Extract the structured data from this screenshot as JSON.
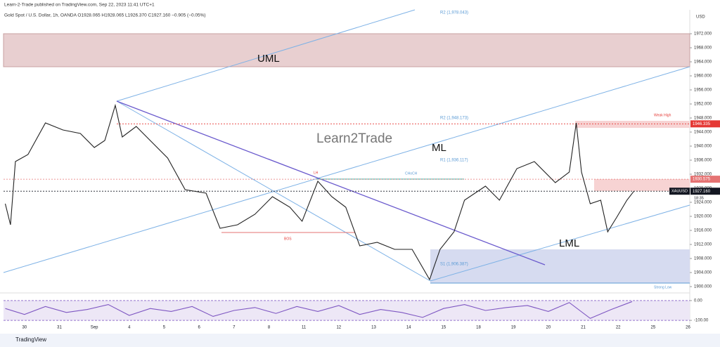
{
  "header": {
    "publisher": "Learn-2-Trade published on TradingView.com, Sep 22, 2023 11:41 UTC+1",
    "symbol": "Gold Spot / U.S. Dollar, 1h, OANDA  O1928.065 H1928.065 L1926.370 C1927.160 −0.905 (−0.05%)",
    "currency": "USD",
    "footer": "TradingView"
  },
  "chart_data": [
    {
      "type": "line",
      "color": "#222222",
      "x": [
        -0.55,
        -0.4,
        -0.26,
        0.1,
        0.6,
        1.1,
        1.6,
        2.0,
        2.3,
        2.6,
        2.8,
        3.2,
        3.6,
        4.1,
        4.6,
        5.2,
        5.6,
        6.1,
        6.6,
        7.1,
        7.6,
        7.95,
        8.4,
        8.8,
        9.2,
        9.6,
        10.1,
        10.6,
        11.1,
        11.6,
        11.9,
        12.3,
        12.6,
        13.2,
        13.6,
        14.1,
        14.6,
        15.2,
        15.6,
        15.8,
        15.95,
        16.2,
        16.5,
        16.7,
        16.95,
        17.25,
        17.45
      ],
      "series": [
        {
          "name": "XAUUSD",
          "color": "#222222",
          "values": [
            1923.6,
            1917.6,
            1935.6,
            1937.6,
            1946.6,
            1944.6,
            1943.6,
            1939.6,
            1941.6,
            1951.6,
            1942.6,
            1945.6,
            1941.6,
            1936.6,
            1927.6,
            1926.6,
            1916.6,
            1917.6,
            1920.6,
            1925.6,
            1922.6,
            1918.6,
            1930,
            1925.6,
            1922.6,
            1911.6,
            1912.6,
            1910.6,
            1910.6,
            1902,
            1910.6,
            1915.6,
            1924.6,
            1928.6,
            1924.6,
            1933.6,
            1935.6,
            1929.6,
            1932.6,
            1946.6,
            1932.6,
            1923.6,
            1924.6,
            1915.6,
            1919.6,
            1924.6,
            1927.16
          ]
        }
      ],
      "xlim": [
        -0.6,
        19.05
      ],
      "xticks": [
        {
          "value": 0,
          "label": "30"
        },
        {
          "value": 1,
          "label": "31"
        },
        {
          "value": 2,
          "label": "Sep"
        },
        {
          "value": 3,
          "label": "4"
        },
        {
          "value": 4,
          "label": "5"
        },
        {
          "value": 5,
          "label": "6"
        },
        {
          "value": 6,
          "label": "7"
        },
        {
          "value": 7,
          "label": "8"
        },
        {
          "value": 8,
          "label": "11"
        },
        {
          "value": 9,
          "label": "12"
        },
        {
          "value": 10,
          "label": "13"
        },
        {
          "value": 11,
          "label": "14"
        },
        {
          "value": 12,
          "label": "15"
        },
        {
          "value": 13,
          "label": "18"
        },
        {
          "value": 14,
          "label": "19"
        },
        {
          "value": 15,
          "label": "20"
        },
        {
          "value": 16,
          "label": "21"
        },
        {
          "value": 17,
          "label": "22"
        },
        {
          "value": 18,
          "label": "25"
        },
        {
          "value": 19,
          "label": "26"
        }
      ],
      "ylim": [
        1898.6,
        1978.8
      ],
      "yticks": [
        {
          "value": 1900,
          "label": "1900.000"
        },
        {
          "value": 1904,
          "label": "1904.000"
        },
        {
          "value": 1908,
          "label": "1908.000"
        },
        {
          "value": 1912,
          "label": "1912.000"
        },
        {
          "value": 1916,
          "label": "1916.000"
        },
        {
          "value": 1920,
          "label": "1920.000"
        },
        {
          "value": 1924,
          "label": "1924.000"
        },
        {
          "value": 1928,
          "label": "1928.000"
        },
        {
          "value": 1932,
          "label": "1932.000"
        },
        {
          "value": 1936,
          "label": "1936.000"
        },
        {
          "value": 1940,
          "label": "1940.000"
        },
        {
          "value": 1944,
          "label": "1944.000"
        },
        {
          "value": 1948,
          "label": "1948.000"
        },
        {
          "value": 1952,
          "label": "1952.000"
        },
        {
          "value": 1956,
          "label": "1956.000"
        },
        {
          "value": 1960,
          "label": "1960.000"
        },
        {
          "value": 1964,
          "label": "1964.000"
        },
        {
          "value": 1968,
          "label": "1968.000"
        },
        {
          "value": 1972,
          "label": "1972.000"
        }
      ],
      "levels": [
        {
          "value": 1946.335,
          "color": "#e53935"
        },
        {
          "value": 1930.575,
          "color": "#e57373"
        },
        {
          "value": 1927.16,
          "label": "1927.160",
          "color": "#131722"
        }
      ],
      "badge": [
        "XAUUSD",
        "18:35"
      ],
      "annotations": [
        "UML",
        "ML",
        "LML",
        "Learn2Trade",
        "R2 (1,978.043)",
        "R2 (1,948.173)",
        "R1 (1,936.117)",
        "S1 (1,906.387)",
        "CHoCH",
        "BOS",
        "LH",
        "Weak High",
        "Strong Low"
      ]
    },
    {
      "type": "line",
      "color": "#7e57c2",
      "x": [
        -0.55,
        0,
        0.6,
        1.2,
        1.8,
        2.4,
        3.0,
        3.6,
        4.2,
        4.8,
        5.4,
        6.0,
        6.6,
        7.2,
        7.8,
        8.4,
        9.0,
        9.6,
        10.2,
        10.8,
        11.4,
        12.0,
        12.6,
        13.2,
        13.8,
        14.4,
        15.0,
        15.6,
        16.2,
        16.8,
        17.4
      ],
      "series": [
        {
          "name": "RSI",
          "color": "#7e57c2",
          "values": [
            -40,
            -70,
            -30,
            -60,
            -45,
            -20,
            -75,
            -40,
            -55,
            -30,
            -80,
            -50,
            -35,
            -65,
            -30,
            -55,
            -25,
            -70,
            -45,
            -60,
            -85,
            -40,
            -20,
            -50,
            -35,
            -25,
            -55,
            -10,
            -90,
            -45,
            -5
          ]
        }
      ],
      "xlim": [
        -0.6,
        19.05
      ],
      "ylim": [
        -121,
        21
      ],
      "yticks": [
        {
          "value": 0,
          "label": "0.00"
        },
        {
          "value": -100,
          "label": "-100.00"
        }
      ]
    }
  ]
}
